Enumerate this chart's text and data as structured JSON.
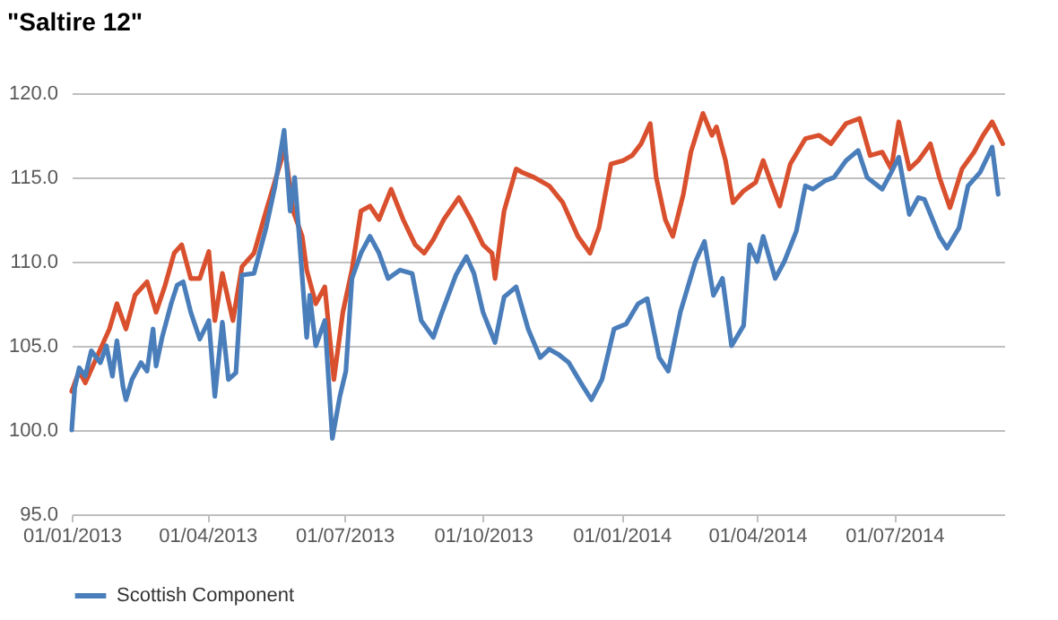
{
  "chart_data": {
    "type": "line",
    "title": "\"Saltire 12\"",
    "xlim": [
      "2013-01-01",
      "2014-09-12"
    ],
    "xticks": [
      {
        "value": "2013-01-01",
        "label": "01/01/2013"
      },
      {
        "value": "2013-04-01",
        "label": "01/04/2013"
      },
      {
        "value": "2013-07-01",
        "label": "01/07/2013"
      },
      {
        "value": "2013-10-01",
        "label": "01/10/2013"
      },
      {
        "value": "2014-01-01",
        "label": "01/01/2014"
      },
      {
        "value": "2014-04-01",
        "label": "01/04/2014"
      },
      {
        "value": "2014-07-01",
        "label": "01/07/2014"
      }
    ],
    "ylim": [
      95,
      120
    ],
    "yticks": [
      {
        "value": 95,
        "label": "95.0"
      },
      {
        "value": 100,
        "label": "100.0"
      },
      {
        "value": 105,
        "label": "105.0"
      },
      {
        "value": 110,
        "label": "110.0"
      },
      {
        "value": 115,
        "label": "115.0"
      },
      {
        "value": 120,
        "label": "120.0"
      }
    ],
    "grid": "y",
    "legend": "bottom",
    "series": [
      {
        "color": "#d9502e",
        "x": [
          "2013-01-01",
          "2013-01-06",
          "2013-01-10",
          "2013-01-16",
          "2013-01-26",
          "2013-01-31",
          "2013-02-06",
          "2013-02-12",
          "2013-02-20",
          "2013-02-26",
          "2013-03-04",
          "2013-03-10",
          "2013-03-15",
          "2013-03-21",
          "2013-03-27",
          "2013-04-02",
          "2013-04-06",
          "2013-04-11",
          "2013-04-18",
          "2013-04-24",
          "2013-05-02",
          "2013-05-10",
          "2013-05-20",
          "2013-05-22",
          "2013-05-28",
          "2013-06-03",
          "2013-06-06",
          "2013-06-12",
          "2013-06-18",
          "2013-06-24",
          "2013-06-30",
          "2013-07-06",
          "2013-07-12",
          "2013-07-18",
          "2013-07-24",
          "2013-08-01",
          "2013-08-09",
          "2013-08-17",
          "2013-08-23",
          "2013-08-29",
          "2013-09-05",
          "2013-09-15",
          "2013-09-23",
          "2013-10-01",
          "2013-10-07",
          "2013-10-09",
          "2013-10-15",
          "2013-10-23",
          "2013-10-27",
          "2013-11-04",
          "2013-11-14",
          "2013-11-23",
          "2013-12-03",
          "2013-12-11",
          "2013-12-17",
          "2013-12-25",
          "2014-01-02",
          "2014-01-08",
          "2014-01-14",
          "2014-01-20",
          "2014-01-24",
          "2014-01-30",
          "2014-02-04",
          "2014-02-11",
          "2014-02-16",
          "2014-02-24",
          "2014-03-02",
          "2014-03-05",
          "2014-03-11",
          "2014-03-16",
          "2014-03-23",
          "2014-03-31",
          "2014-04-05",
          "2014-04-11",
          "2014-04-16",
          "2014-04-23",
          "2014-05-03",
          "2014-05-12",
          "2014-05-20",
          "2014-05-30",
          "2014-06-08",
          "2014-06-15",
          "2014-06-23",
          "2014-06-29",
          "2014-07-04",
          "2014-07-11",
          "2014-07-17",
          "2014-07-25",
          "2014-07-31",
          "2014-08-07",
          "2014-08-15",
          "2014-08-23",
          "2014-08-29",
          "2014-09-04",
          "2014-09-11"
        ],
        "values": [
          102.3,
          103.5,
          102.8,
          104,
          106,
          107.5,
          106,
          108,
          108.8,
          107,
          108.6,
          110.5,
          111,
          109,
          109,
          110.6,
          106.5,
          109.3,
          106.5,
          109.7,
          110.5,
          113,
          116,
          117,
          113,
          111.5,
          109.5,
          107.5,
          108.5,
          103,
          107,
          109.5,
          113,
          113.3,
          112.5,
          114.3,
          112.5,
          111,
          110.5,
          111.3,
          112.5,
          113.8,
          112.5,
          111,
          110.5,
          109,
          113,
          115.5,
          115.3,
          115,
          114.5,
          113.5,
          111.5,
          110.5,
          112,
          115.8,
          116,
          116.3,
          117,
          118.2,
          115,
          112.5,
          111.5,
          114,
          116.5,
          118.8,
          117.5,
          118,
          116,
          113.5,
          114.2,
          114.7,
          116,
          114.5,
          113.3,
          115.8,
          117.3,
          117.5,
          117,
          118.2,
          118.5,
          116.3,
          116.5,
          115.5,
          118.3,
          115.5,
          116,
          117,
          115,
          113.2,
          115.5,
          116.5,
          117.5,
          118.3,
          117
        ]
      },
      {
        "name": "Scottish Component",
        "color": "#4a7ebb",
        "x": [
          "2013-01-01",
          "2013-01-03",
          "2013-01-06",
          "2013-01-10",
          "2013-01-14",
          "2013-01-20",
          "2013-01-24",
          "2013-01-28",
          "2013-01-31",
          "2013-02-04",
          "2013-02-06",
          "2013-02-10",
          "2013-02-16",
          "2013-02-20",
          "2013-02-24",
          "2013-02-26",
          "2013-03-02",
          "2013-03-08",
          "2013-03-12",
          "2013-03-16",
          "2013-03-21",
          "2013-03-27",
          "2013-04-02",
          "2013-04-06",
          "2013-04-11",
          "2013-04-15",
          "2013-04-20",
          "2013-04-24",
          "2013-05-02",
          "2013-05-10",
          "2013-05-16",
          "2013-05-22",
          "2013-05-26",
          "2013-05-29",
          "2013-06-01",
          "2013-06-06",
          "2013-06-08",
          "2013-06-12",
          "2013-06-18",
          "2013-06-23",
          "2013-06-28",
          "2013-07-02",
          "2013-07-06",
          "2013-07-12",
          "2013-07-18",
          "2013-07-24",
          "2013-07-30",
          "2013-08-07",
          "2013-08-15",
          "2013-08-21",
          "2013-08-29",
          "2013-09-03",
          "2013-09-13",
          "2013-09-20",
          "2013-09-25",
          "2013-10-01",
          "2013-10-09",
          "2013-10-15",
          "2013-10-23",
          "2013-10-31",
          "2013-11-08",
          "2013-11-14",
          "2013-11-20",
          "2013-11-27",
          "2013-12-05",
          "2013-12-12",
          "2013-12-19",
          "2013-12-27",
          "2014-01-04",
          "2014-01-12",
          "2014-01-18",
          "2014-01-26",
          "2014-02-01",
          "2014-02-09",
          "2014-02-19",
          "2014-02-25",
          "2014-03-03",
          "2014-03-09",
          "2014-03-15",
          "2014-03-23",
          "2014-03-27",
          "2014-04-01",
          "2014-04-05",
          "2014-04-13",
          "2014-04-19",
          "2014-04-27",
          "2014-05-03",
          "2014-05-08",
          "2014-05-16",
          "2014-05-22",
          "2014-05-30",
          "2014-06-07",
          "2014-06-13",
          "2014-06-23",
          "2014-06-29",
          "2014-07-04",
          "2014-07-11",
          "2014-07-17",
          "2014-07-21",
          "2014-07-31",
          "2014-08-05",
          "2014-08-13",
          "2014-08-19",
          "2014-08-27",
          "2014-09-04",
          "2014-09-08"
        ],
        "values": [
          100,
          102.5,
          103.7,
          103.2,
          104.7,
          104,
          105,
          103.2,
          105.3,
          102.6,
          101.8,
          103,
          104,
          103.5,
          106,
          103.8,
          105.5,
          107.5,
          108.6,
          108.8,
          107,
          105.4,
          106.5,
          102,
          106.4,
          103,
          103.4,
          109.2,
          109.3,
          112,
          114.5,
          117.8,
          113,
          115,
          111.5,
          105.5,
          108,
          105,
          106.5,
          99.5,
          102,
          103.5,
          109,
          110.5,
          111.5,
          110.5,
          109,
          109.5,
          109.3,
          106.5,
          105.5,
          106.8,
          109.2,
          110.3,
          109.3,
          107,
          105.2,
          107.9,
          108.5,
          106,
          104.3,
          104.8,
          104.5,
          104,
          102.8,
          101.8,
          103,
          106,
          106.3,
          107.5,
          107.8,
          104.3,
          103.5,
          107,
          110,
          111.2,
          108,
          109,
          105,
          106.2,
          111,
          110,
          111.5,
          109,
          110,
          111.8,
          114.5,
          114.3,
          114.8,
          115,
          116,
          116.6,
          115,
          114.3,
          115.3,
          116.2,
          112.8,
          113.8,
          113.7,
          111.5,
          110.8,
          112,
          114.5,
          115.3,
          116.8,
          114
        ]
      }
    ]
  }
}
